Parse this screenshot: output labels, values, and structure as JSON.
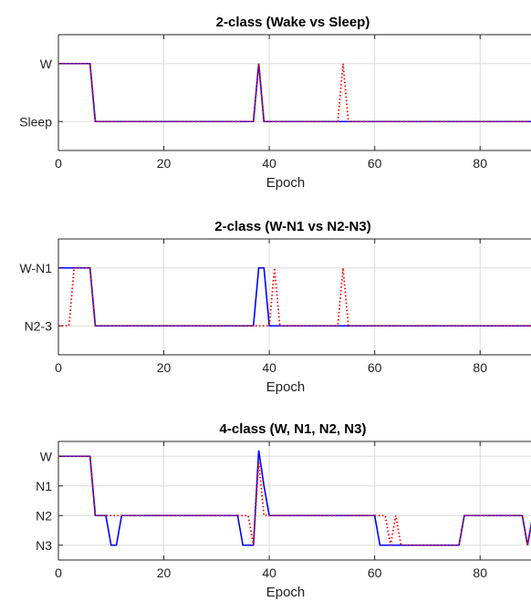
{
  "chart_data": [
    {
      "type": "line",
      "title": "2-class (Wake vs Sleep)",
      "xlabel": "Epoch",
      "ylabel": "",
      "xlim": [
        0,
        90
      ],
      "xticks": [
        "0",
        "20",
        "40",
        "60",
        "80"
      ],
      "ylim": [
        -0.5,
        1.5
      ],
      "yticks": [
        {
          "value": 1,
          "label": "W"
        },
        {
          "value": 0,
          "label": "Sleep"
        }
      ],
      "grid": true,
      "series": [
        {
          "color": "#0000ff",
          "style": "solid",
          "points": [
            [
              0,
              1
            ],
            [
              6,
              1
            ],
            [
              7,
              0
            ],
            [
              37,
              0
            ],
            [
              38,
              1
            ],
            [
              39,
              0
            ],
            [
              90,
              0
            ]
          ]
        },
        {
          "color": "#ff0000",
          "style": "dotted",
          "points": [
            [
              0,
              1
            ],
            [
              6,
              1
            ],
            [
              7,
              0
            ],
            [
              37,
              0
            ],
            [
              38,
              1
            ],
            [
              39,
              0
            ],
            [
              53,
              0
            ],
            [
              54,
              1
            ],
            [
              55,
              0
            ],
            [
              90,
              0
            ]
          ]
        }
      ]
    },
    {
      "type": "line",
      "title": "2-class (W-N1 vs N2-N3)",
      "xlabel": "Epoch",
      "ylabel": "",
      "xlim": [
        0,
        90
      ],
      "xticks": [
        "0",
        "20",
        "40",
        "60",
        "80"
      ],
      "ylim": [
        -0.5,
        1.5
      ],
      "yticks": [
        {
          "value": 1,
          "label": "W-N1"
        },
        {
          "value": 0,
          "label": "N2-3"
        }
      ],
      "grid": true,
      "series": [
        {
          "color": "#0000ff",
          "style": "solid",
          "points": [
            [
              0,
              1
            ],
            [
              6,
              1
            ],
            [
              7,
              0
            ],
            [
              37,
              0
            ],
            [
              38,
              1
            ],
            [
              39,
              1
            ],
            [
              40,
              0
            ],
            [
              90,
              0
            ]
          ]
        },
        {
          "color": "#ff0000",
          "style": "dotted",
          "points": [
            [
              0,
              0
            ],
            [
              2,
              0
            ],
            [
              3,
              1
            ],
            [
              6,
              1
            ],
            [
              7,
              0
            ],
            [
              40,
              0
            ],
            [
              41,
              1
            ],
            [
              42,
              0
            ],
            [
              53,
              0
            ],
            [
              54,
              1
            ],
            [
              55,
              0
            ],
            [
              90,
              0
            ]
          ]
        }
      ]
    },
    {
      "type": "line",
      "title": "4-class (W, N1, N2, N3)",
      "xlabel": "Epoch",
      "ylabel": "",
      "xlim": [
        0,
        90
      ],
      "xticks": [
        "0",
        "20",
        "40",
        "60",
        "80"
      ],
      "ylim": [
        -0.5,
        3.5
      ],
      "yticks": [
        {
          "value": 3,
          "label": "W"
        },
        {
          "value": 2,
          "label": "N1"
        },
        {
          "value": 1,
          "label": "N2"
        },
        {
          "value": 0,
          "label": "N3"
        }
      ],
      "grid": true,
      "series": [
        {
          "color": "#0000ff",
          "style": "solid",
          "points": [
            [
              0,
              3
            ],
            [
              6,
              3
            ],
            [
              7,
              1
            ],
            [
              9,
              1
            ],
            [
              10,
              0
            ],
            [
              11,
              0
            ],
            [
              12,
              1
            ],
            [
              34,
              1
            ],
            [
              35,
              0
            ],
            [
              37,
              0
            ],
            [
              38,
              3.2
            ],
            [
              39,
              2
            ],
            [
              40,
              1
            ],
            [
              60,
              1
            ],
            [
              61,
              0
            ],
            [
              76,
              0
            ],
            [
              77,
              1
            ],
            [
              88,
              1
            ],
            [
              89,
              0
            ],
            [
              90,
              1
            ]
          ]
        },
        {
          "color": "#ff0000",
          "style": "dotted",
          "points": [
            [
              0,
              3
            ],
            [
              6,
              3
            ],
            [
              7,
              1
            ],
            [
              11,
              1
            ],
            [
              12,
              1
            ],
            [
              33,
              1
            ],
            [
              34,
              1
            ],
            [
              35,
              1
            ],
            [
              36,
              1
            ],
            [
              37,
              0
            ],
            [
              38,
              2.8
            ],
            [
              39,
              1
            ],
            [
              61,
              1
            ],
            [
              62,
              1
            ],
            [
              63,
              0
            ],
            [
              64,
              1
            ],
            [
              65,
              0
            ],
            [
              76,
              0
            ],
            [
              77,
              1
            ],
            [
              88,
              1
            ],
            [
              89,
              0
            ],
            [
              90,
              1
            ]
          ]
        }
      ]
    }
  ]
}
